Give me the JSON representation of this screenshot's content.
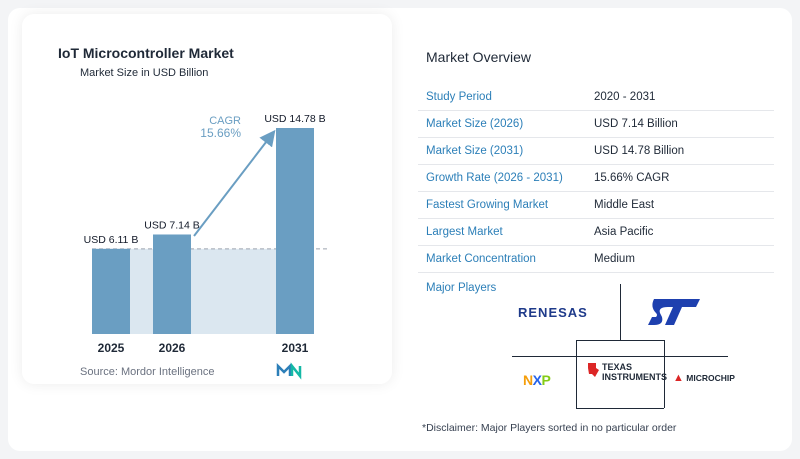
{
  "chart_data": {
    "type": "bar",
    "title": "IoT Microcontroller Market",
    "subtitle": "Market Size in USD Billion",
    "categories": [
      "2025",
      "2026",
      "2031"
    ],
    "values": [
      6.11,
      7.14,
      14.78
    ],
    "data_labels": [
      "USD 6.11 B",
      "USD 7.14 B",
      "USD 14.78 B"
    ],
    "annotation": {
      "label": "CAGR",
      "value": "15.66%"
    },
    "ylim": [
      0,
      16
    ],
    "bar_color": "#6a9ec2",
    "reference_color": "#dbe7f0",
    "accent_color": "#6a9ec2"
  },
  "source": "Source:  Mordor Intelligence",
  "overview": {
    "title": "Market Overview",
    "rows": [
      {
        "key": "Study Period",
        "value": "2020 - 2031"
      },
      {
        "key": "Market Size (2026)",
        "value": "USD 7.14 Billion"
      },
      {
        "key": "Market Size (2031)",
        "value": "USD 14.78 Billion"
      },
      {
        "key": "Growth Rate (2026 - 2031)",
        "value": "15.66% CAGR"
      },
      {
        "key": "Fastest Growing Market",
        "value": "Middle East"
      },
      {
        "key": "Largest Market",
        "value": "Asia Pacific"
      },
      {
        "key": "Market Concentration",
        "value": "Medium"
      }
    ]
  },
  "players": {
    "label": "Major Players",
    "logos": [
      "RENESAS",
      "ST",
      "NXP",
      "TEXAS INSTRUMENTS",
      "MICROCHIP"
    ]
  },
  "disclaimer": "*Disclaimer: Major Players sorted in no particular order",
  "colors": {
    "key_text": "#2c7fb8",
    "logo_mark": "#14b8a6"
  }
}
